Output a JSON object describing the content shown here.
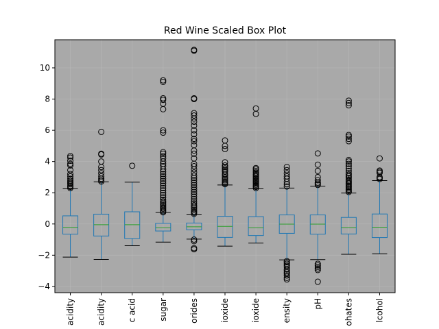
{
  "chart_data": {
    "type": "box",
    "title": "Red Wine Scaled Box Plot",
    "xlabel": "",
    "ylabel": "",
    "ylim": [
      -4.4,
      11.8
    ],
    "yticks": [
      -4,
      -2,
      0,
      2,
      4,
      6,
      8,
      10
    ],
    "ytick_labels": [
      "−4",
      "−2",
      "0",
      "2",
      "4",
      "6",
      "8",
      "10"
    ],
    "grid": true,
    "background": "#a9a9a9",
    "colors": {
      "box": "#1f77b4",
      "median": "#2ca02c",
      "whisker": "#1f77b4",
      "cap": "#000000",
      "flier": "#000000",
      "grid": "#bdbdbd"
    },
    "categories": [
      "acidity",
      "acidity",
      "c acid",
      "sugar",
      "orides",
      "ioxide",
      "ioxide",
      "ensity",
      "pH",
      "ohates",
      "lcohol"
    ],
    "series": [
      {
        "q1": -0.65,
        "median": -0.22,
        "q3": 0.52,
        "whisker_low": -2.12,
        "whisker_high": 2.25,
        "fliers": [
          2.3,
          2.38,
          2.45,
          2.55,
          2.62,
          2.7,
          2.78,
          2.9,
          3.05,
          3.2,
          3.45,
          3.75,
          3.85,
          4.05,
          4.25,
          4.35
        ]
      },
      {
        "q1": -0.77,
        "median": -0.05,
        "q3": 0.63,
        "whisker_low": -2.27,
        "whisker_high": 2.7,
        "fliers": [
          2.72,
          2.8,
          2.9,
          3.05,
          3.25,
          3.45,
          3.65,
          4.0,
          4.45,
          4.5,
          5.9
        ]
      },
      {
        "q1": -0.93,
        "median": -0.05,
        "q3": 0.78,
        "whisker_low": -1.39,
        "whisker_high": 2.68,
        "fliers": [
          3.73
        ]
      },
      {
        "q1": -0.45,
        "median": -0.24,
        "q3": 0.04,
        "whisker_low": -1.16,
        "whisker_high": 0.75,
        "fliers": [
          0.75,
          0.82,
          0.9,
          0.98,
          1.06,
          1.15,
          1.25,
          1.35,
          1.45,
          1.55,
          1.7,
          1.85,
          2.0,
          2.15,
          2.3,
          2.45,
          2.6,
          2.75,
          2.9,
          3.05,
          3.2,
          3.35,
          3.5,
          3.7,
          3.85,
          4.0,
          4.2,
          4.35,
          4.5,
          4.6,
          5.85,
          6.0,
          7.35,
          7.7,
          7.95,
          8.05,
          9.1,
          9.2
        ]
      },
      {
        "q1": -0.37,
        "median": -0.18,
        "q3": 0.06,
        "whisker_low": -0.97,
        "whisker_high": 0.62,
        "fliers": [
          -1.0,
          -1.1,
          -1.55,
          -1.62,
          0.65,
          0.72,
          0.8,
          0.9,
          1.0,
          1.1,
          1.2,
          1.32,
          1.45,
          1.6,
          1.75,
          1.9,
          2.05,
          2.2,
          2.35,
          2.5,
          2.65,
          2.8,
          2.95,
          3.1,
          3.3,
          3.5,
          3.7,
          3.85,
          4.2,
          4.5,
          4.7,
          5.05,
          5.3,
          5.45,
          5.75,
          6.0,
          6.3,
          6.55,
          6.75,
          6.95,
          7.1,
          8.0,
          8.05,
          11.1,
          11.15
        ]
      },
      {
        "q1": -0.86,
        "median": -0.15,
        "q3": 0.49,
        "whisker_low": -1.42,
        "whisker_high": 2.5,
        "fliers": [
          2.55,
          2.62,
          2.7,
          2.8,
          2.9,
          3.0,
          3.1,
          3.2,
          3.35,
          3.45,
          3.55,
          3.65,
          3.75,
          3.95,
          4.8,
          5.0,
          5.35
        ]
      },
      {
        "q1": -0.74,
        "median": -0.24,
        "q3": 0.47,
        "whisker_low": -1.22,
        "whisker_high": 2.25,
        "fliers": [
          2.3,
          2.38,
          2.45,
          2.52,
          2.6,
          2.68,
          2.75,
          2.82,
          2.9,
          2.97,
          3.05,
          3.13,
          3.2,
          3.3,
          3.4,
          3.5,
          3.58,
          7.05,
          7.4
        ]
      },
      {
        "q1": -0.6,
        "median": -0.01,
        "q3": 0.58,
        "whisker_low": -2.3,
        "whisker_high": 2.3,
        "fliers": [
          -3.55,
          -3.45,
          -3.3,
          -3.2,
          -3.1,
          -3.0,
          -2.9,
          -2.75,
          -2.65,
          -2.55,
          -2.45,
          -2.38,
          2.4,
          2.55,
          2.7,
          2.9,
          3.05,
          3.25,
          3.45,
          3.65
        ]
      },
      {
        "q1": -0.65,
        "median": -0.01,
        "q3": 0.58,
        "whisker_low": -2.28,
        "whisker_high": 2.42,
        "fliers": [
          -3.7,
          -2.95,
          -2.85,
          -2.75,
          -2.65,
          -2.55,
          2.5,
          2.58,
          2.65,
          2.8,
          3.0,
          3.4,
          3.8,
          4.52
        ]
      },
      {
        "q1": -0.64,
        "median": -0.23,
        "q3": 0.42,
        "whisker_low": -1.94,
        "whisker_high": 1.98,
        "fliers": [
          2.05,
          2.12,
          2.2,
          2.28,
          2.36,
          2.44,
          2.52,
          2.6,
          2.68,
          2.76,
          2.85,
          2.95,
          3.05,
          3.15,
          3.25,
          3.4,
          3.55,
          3.7,
          3.85,
          4.0,
          4.1,
          5.3,
          5.45,
          5.6,
          5.7,
          7.6,
          7.75,
          7.9
        ]
      },
      {
        "q1": -0.87,
        "median": -0.21,
        "q3": 0.64,
        "whisker_low": -1.91,
        "whisker_high": 2.78,
        "fliers": [
          2.88,
          2.95,
          3.0,
          3.28,
          3.35,
          3.42,
          4.2
        ]
      }
    ]
  }
}
